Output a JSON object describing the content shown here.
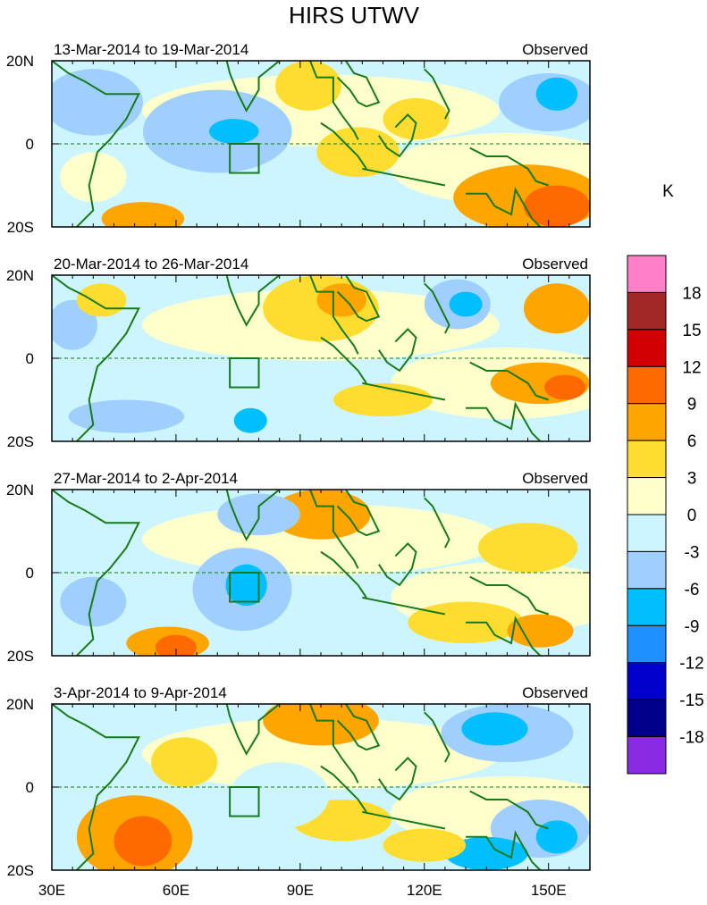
{
  "chart_data": {
    "type": "heatmap",
    "title": "HIRS UTWV",
    "lat_tick_labels": [
      "20N",
      "0",
      "20S"
    ],
    "lat_ticks": [
      20,
      0,
      -20
    ],
    "lon_tick_labels": [
      "30E",
      "60E",
      "90E",
      "120E",
      "150E"
    ],
    "lon_ticks": [
      30,
      60,
      90,
      120,
      150
    ],
    "lon_range": [
      30,
      160
    ],
    "lat_range": [
      -20,
      20
    ],
    "panels": [
      {
        "title": "13-Mar-2014 to 19-Mar-2014",
        "label": "Observed"
      },
      {
        "title": "20-Mar-2014 to 26-Mar-2014",
        "label": "Observed"
      },
      {
        "title": "27-Mar-2014 to 2-Apr-2014",
        "label": "Observed"
      },
      {
        "title": "3-Apr-2014 to 9-Apr-2014",
        "label": "Observed"
      }
    ],
    "colorbar": {
      "unit": "K",
      "levels": [
        18,
        15,
        12,
        9,
        6,
        3,
        0,
        -3,
        -6,
        -9,
        -12,
        -15,
        -18
      ],
      "level_labels": [
        "18",
        "15",
        "12",
        "9",
        "6",
        "3",
        "0",
        "-3",
        "-6",
        "-9",
        "-12",
        "-15",
        "-18"
      ],
      "colors": [
        "#ff7fc8",
        "#a02828",
        "#d20000",
        "#ff6a00",
        "#ffa500",
        "#ffdd30",
        "#ffffcc",
        "#ccf5ff",
        "#9fcfff",
        "#00bfff",
        "#1e90ff",
        "#0000cd",
        "#00008b",
        "#8a2be2"
      ]
    }
  }
}
